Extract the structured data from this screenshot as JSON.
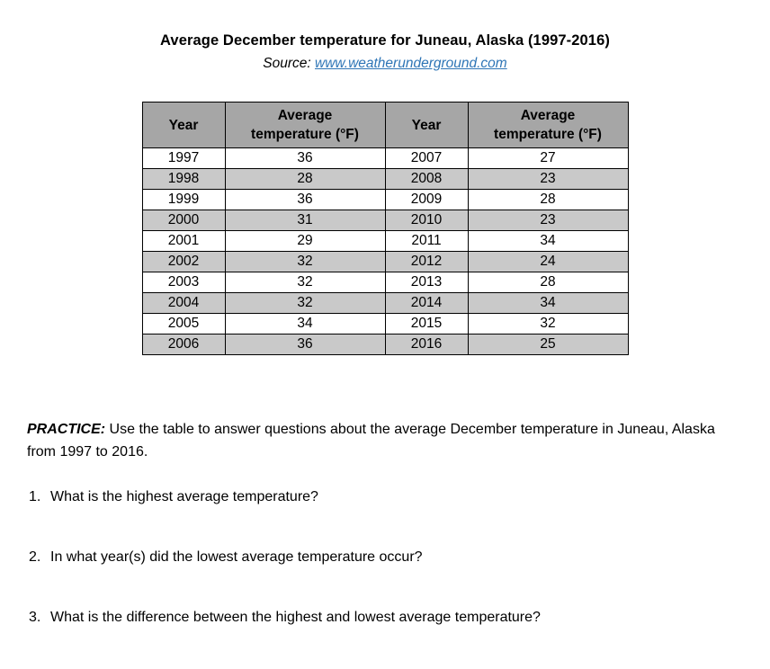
{
  "header": {
    "title": "Average December temperature for Juneau, Alaska (1997-2016)",
    "source_label": "Source:",
    "source_link": "www.weatherunderground.com"
  },
  "table": {
    "headers": [
      {
        "label": "Year"
      },
      {
        "line1": "Average",
        "line2": "temperature (°F)"
      },
      {
        "label": "Year"
      },
      {
        "line1": "Average",
        "line2": "temperature (°F)"
      }
    ],
    "rows": [
      [
        "1997",
        "36",
        "2007",
        "27"
      ],
      [
        "1998",
        "28",
        "2008",
        "23"
      ],
      [
        "1999",
        "36",
        "2009",
        "28"
      ],
      [
        "2000",
        "31",
        "2010",
        "23"
      ],
      [
        "2001",
        "29",
        "2011",
        "34"
      ],
      [
        "2002",
        "32",
        "2012",
        "24"
      ],
      [
        "2003",
        "32",
        "2013",
        "28"
      ],
      [
        "2004",
        "32",
        "2014",
        "34"
      ],
      [
        "2005",
        "34",
        "2015",
        "32"
      ],
      [
        "2006",
        "36",
        "2016",
        "25"
      ]
    ]
  },
  "practice": {
    "label": "PRACTICE:",
    "text": " Use the table to answer questions about the average December temperature in Juneau, Alaska from 1997 to 2016."
  },
  "questions": [
    {
      "number": "1.",
      "text": "What is the highest average temperature?"
    },
    {
      "number": "2.",
      "text": "In what year(s) did the lowest average temperature occur?"
    },
    {
      "number": "3.",
      "text": "What is the difference between the highest and lowest average temperature?"
    }
  ],
  "colors": {
    "header_bg": "#a6a6a6",
    "alt_row_bg": "#c9c9c9",
    "link_color": "#2e75b6"
  }
}
